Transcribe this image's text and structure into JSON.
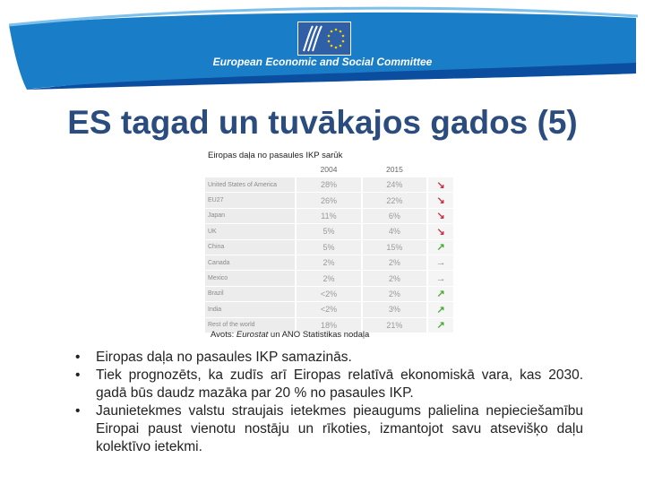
{
  "header": {
    "org_name": "European Economic and Social Committee",
    "colors": {
      "banner": "#1a7dc7",
      "banner_dark": "#0b4ea0",
      "swoosh": "#ffffff"
    }
  },
  "slide": {
    "title": "ES tagad un tuvākajos gados (5)"
  },
  "table": {
    "caption": "Eiropas daļa no pasaules IKP sarūk",
    "columns": [
      "2004",
      "2015"
    ],
    "rows": [
      {
        "country": "United States of America",
        "v2004": "28%",
        "v2015": "24%",
        "trend": "down"
      },
      {
        "country": "EU27",
        "v2004": "26%",
        "v2015": "22%",
        "trend": "down"
      },
      {
        "country": "Japan",
        "v2004": "11%",
        "v2015": "6%",
        "trend": "down"
      },
      {
        "country": "UK",
        "v2004": "5%",
        "v2015": "4%",
        "trend": "down"
      },
      {
        "country": "China",
        "v2004": "5%",
        "v2015": "15%",
        "trend": "up"
      },
      {
        "country": "Canada",
        "v2004": "2%",
        "v2015": "2%",
        "trend": "flat"
      },
      {
        "country": "Mexico",
        "v2004": "2%",
        "v2015": "2%",
        "trend": "flat"
      },
      {
        "country": "Brazil",
        "v2004": "<2%",
        "v2015": "2%",
        "trend": "up"
      },
      {
        "country": "India",
        "v2004": "<2%",
        "v2015": "3%",
        "trend": "up"
      },
      {
        "country": "Rest of the world",
        "v2004": "18%",
        "v2015": "21%",
        "trend": "up"
      }
    ],
    "source_prefix": "Avots: ",
    "source_italic": "Eurostat",
    "source_suffix": " un ANO Statistikas nodaļa"
  },
  "bullets": [
    "Eiropas daļa no pasaules IKP samazinās.",
    "Tiek prognozēts, ka zudīs arī Eiropas relatīvā ekonomiskā vara, kas 2030. gadā būs daudz mazāka par 20 % no pasaules IKP.",
    "Jaunietekmes valstu straujais ietekmes pieaugums palielina nepieciešamību Eiropai paust vienotu nostāju un rīkoties, izmantojot savu atsevišķo daļu kolektīvo ietekmi."
  ],
  "bullet_symbol": "•",
  "trend_icons": {
    "down": "arrow-down-right-icon",
    "up": "arrow-up-right-icon",
    "flat": "arrow-right-icon"
  }
}
